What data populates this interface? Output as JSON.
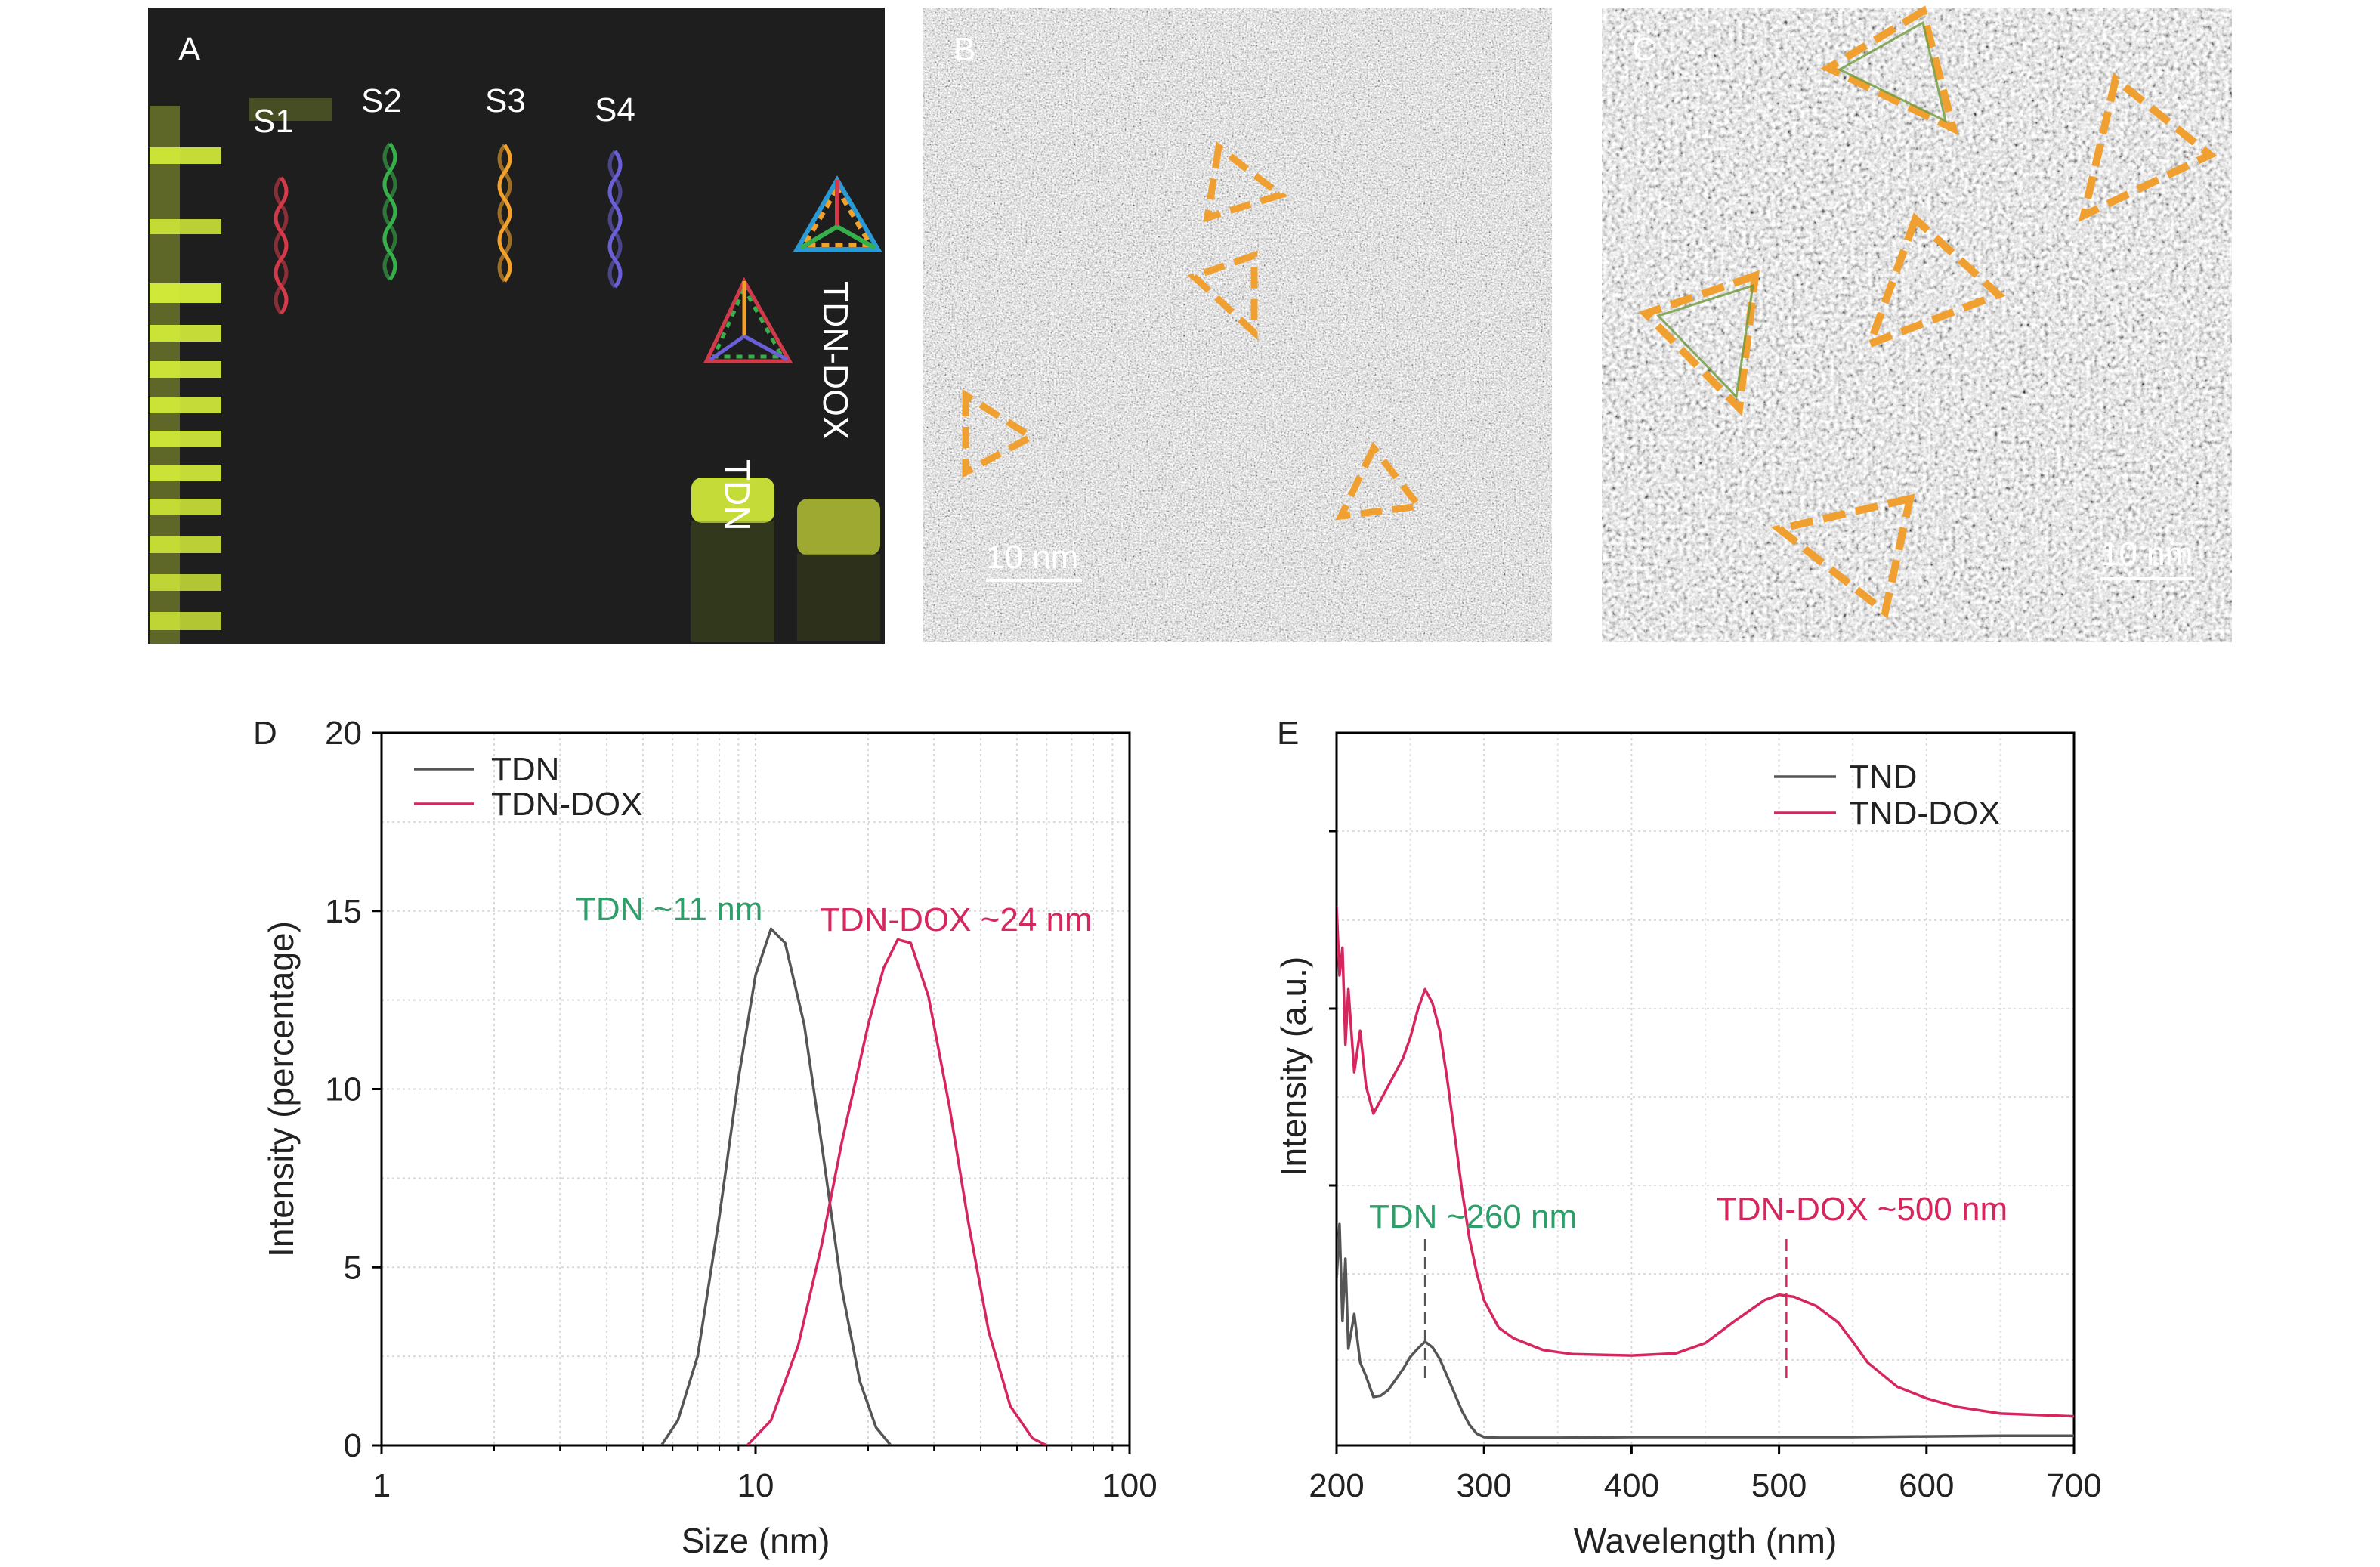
{
  "panels": {
    "A": {
      "letter": "A",
      "lanes": [
        "S1",
        "S2",
        "S3",
        "S4"
      ],
      "products": [
        "TDN",
        "TDN-DOX"
      ],
      "colors": {
        "background": "#1e1e1e",
        "band": "#d7f03a",
        "S1": "#d23a4a",
        "S2": "#36b04a",
        "S3": "#f2a12c",
        "S4": "#6a5fd6"
      }
    },
    "B": {
      "letter": "B",
      "scale_bar": "10 nm"
    },
    "C": {
      "letter": "C",
      "scale_bar": "10 nm"
    },
    "colors": {
      "triangle_outline": "#f0a030",
      "triangle_inner": "#6e9a3c"
    }
  },
  "chart_data": [
    {
      "type": "line",
      "panel": "D",
      "xlabel": "Size (nm)",
      "ylabel": "Intensity (percentage)",
      "x_scale": "log",
      "xlim": [
        1,
        100
      ],
      "ylim": [
        0,
        20
      ],
      "x_ticks": [
        1,
        10,
        100
      ],
      "y_ticks": [
        0,
        5,
        10,
        15,
        20
      ],
      "grid": true,
      "legend": "top-left",
      "series": [
        {
          "name": "TDN",
          "color": "#555555",
          "x": [
            5.6,
            6.2,
            7.0,
            8.0,
            9.0,
            10.0,
            11.0,
            12.0,
            13.5,
            15.0,
            17.0,
            19.0,
            21.0,
            23.0
          ],
          "y": [
            0,
            0.7,
            2.5,
            6.4,
            10.3,
            13.2,
            14.5,
            14.1,
            11.8,
            8.5,
            4.4,
            1.8,
            0.5,
            0
          ]
        },
        {
          "name": "TDN-DOX",
          "color": "#d6265e",
          "x": [
            9.5,
            11.0,
            13.0,
            15.0,
            17.0,
            20.0,
            22.0,
            24.0,
            26.0,
            29.0,
            33.0,
            37.0,
            42.0,
            48.0,
            55.0,
            60.0
          ],
          "y": [
            0,
            0.7,
            2.8,
            5.6,
            8.5,
            11.8,
            13.4,
            14.2,
            14.1,
            12.6,
            9.5,
            6.3,
            3.2,
            1.1,
            0.2,
            0
          ]
        }
      ],
      "annotations": [
        {
          "text": "TDN ~11 nm",
          "color": "#2e9e6a"
        },
        {
          "text": "TDN-DOX ~24 nm",
          "color": "#d6265e"
        }
      ]
    },
    {
      "type": "line",
      "panel": "E",
      "xlabel": "Wavelength (nm)",
      "ylabel": "Intensity (a.u.)",
      "xlim": [
        200,
        700
      ],
      "ylim": [
        0,
        100
      ],
      "x_ticks": [
        200,
        300,
        400,
        500,
        600,
        700
      ],
      "grid": true,
      "legend": "top-right",
      "series": [
        {
          "name": "TND",
          "color": "#555555",
          "x": [
            200,
            202,
            204,
            206,
            208,
            212,
            216,
            220,
            225,
            230,
            235,
            240,
            245,
            250,
            255,
            260,
            265,
            270,
            275,
            280,
            285,
            290,
            295,
            300,
            310,
            350,
            400,
            450,
            500,
            550,
            600,
            650,
            700
          ],
          "y": [
            24,
            32,
            18,
            27,
            14,
            19,
            12,
            10,
            7,
            7.2,
            8,
            9.5,
            11,
            12.8,
            14,
            15,
            14.2,
            12.5,
            10,
            7.5,
            5,
            3,
            1.7,
            1.2,
            1.1,
            1.1,
            1.2,
            1.2,
            1.2,
            1.2,
            1.3,
            1.4,
            1.4
          ]
        },
        {
          "name": "TND-DOX",
          "color": "#d6265e",
          "x": [
            200,
            202,
            204,
            206,
            208,
            212,
            216,
            220,
            225,
            230,
            235,
            240,
            245,
            250,
            255,
            260,
            265,
            270,
            275,
            280,
            285,
            290,
            295,
            300,
            310,
            320,
            340,
            360,
            400,
            430,
            450,
            470,
            490,
            500,
            510,
            525,
            540,
            550,
            560,
            580,
            600,
            620,
            650,
            700
          ],
          "y": [
            78,
            68,
            72,
            58,
            66,
            54,
            60,
            52,
            48,
            50,
            52,
            54,
            56,
            59,
            63,
            66,
            64,
            60,
            53,
            45,
            37,
            30,
            25,
            21,
            17,
            15.5,
            13.8,
            13.2,
            13,
            13.3,
            14.8,
            18,
            21,
            21.8,
            21.5,
            20.2,
            17.8,
            15,
            12,
            8.5,
            6.8,
            5.6,
            4.6,
            4.2
          ]
        }
      ],
      "annotations": [
        {
          "text": "TDN ~260 nm",
          "color": "#2e9e6a",
          "x": 260
        },
        {
          "text": "TDN-DOX ~500 nm",
          "color": "#d6265e",
          "x": 505
        }
      ]
    }
  ]
}
